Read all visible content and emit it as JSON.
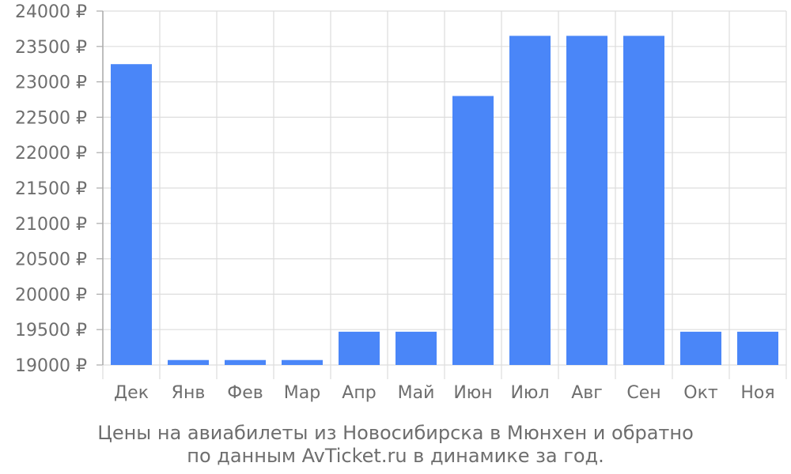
{
  "chart_data": {
    "type": "bar",
    "categories": [
      "Дек",
      "Янв",
      "Фев",
      "Мар",
      "Апр",
      "Май",
      "Июн",
      "Июл",
      "Авг",
      "Сен",
      "Окт",
      "Ноя"
    ],
    "values": [
      23250,
      19070,
      19070,
      19070,
      19470,
      19470,
      22800,
      23650,
      23650,
      23650,
      19470,
      19470
    ],
    "ylim": [
      19000,
      24000
    ],
    "yticks": [
      19000,
      19500,
      20000,
      20500,
      21000,
      21500,
      22000,
      22500,
      23000,
      23500,
      24000
    ],
    "ytick_labels": [
      "19000 ₽",
      "19500 ₽",
      "20000 ₽",
      "20500 ₽",
      "21000 ₽",
      "21500 ₽",
      "22000 ₽",
      "22500 ₽",
      "23000 ₽",
      "23500 ₽",
      "24000 ₽"
    ],
    "grid": true,
    "bar_color": "#4a86f8"
  },
  "caption": {
    "line1": "Цены на авиабилеты из Новосибирска в Мюнхен и обратно",
    "line2": "по данным AvTicket.ru в динамике за год."
  },
  "colors": {
    "grid": "#dddddd",
    "axis": "#aaaaaa",
    "text": "#6e6e6e"
  }
}
